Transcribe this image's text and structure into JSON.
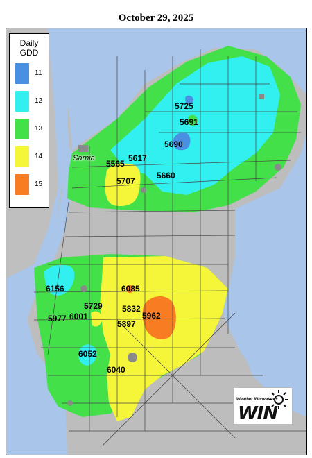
{
  "title": "October 29, 2025",
  "legend": {
    "title_line1": "Daily",
    "title_line2": "GDD",
    "items": [
      {
        "value": "11",
        "color": "#4a90e2"
      },
      {
        "value": "12",
        "color": "#33f0f0"
      },
      {
        "value": "13",
        "color": "#44e04a"
      },
      {
        "value": "14",
        "color": "#f5f53a"
      },
      {
        "value": "15",
        "color": "#f77c22"
      }
    ]
  },
  "city": "Sarnia",
  "stations_north": [
    "5725",
    "5691",
    "5690",
    "5617",
    "5565",
    "5660",
    "5707"
  ],
  "stations_south": [
    "6156",
    "6085",
    "5729",
    "5832",
    "5977",
    "6001",
    "5962",
    "5897",
    "6052",
    "6040"
  ],
  "logo": {
    "subtitle": "Weather INnovations",
    "name": "WIN"
  }
}
